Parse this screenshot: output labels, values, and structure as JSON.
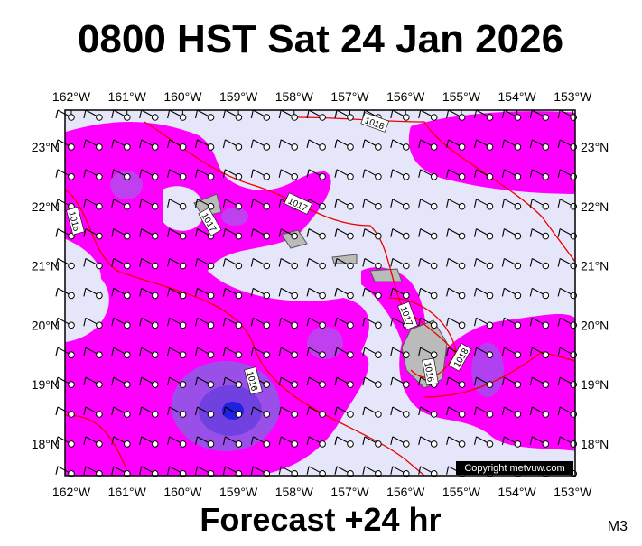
{
  "title": "0800 HST Sat 24 Jan 2026",
  "subtitle": "Forecast +24 hr",
  "corner_label": "M3",
  "copyright": "Copyright metvuw.com",
  "map": {
    "lon_labels": [
      "162°W",
      "161°W",
      "160°W",
      "159°W",
      "158°W",
      "157°W",
      "156°W",
      "155°W",
      "154°W",
      "153°W"
    ],
    "lat_labels": [
      "23°N",
      "22°N",
      "21°N",
      "20°N",
      "19°N",
      "18°N"
    ],
    "isobar_labels": [
      "1018",
      "1017",
      "1017",
      "1016",
      "1016",
      "1017",
      "1018",
      "1016"
    ]
  }
}
